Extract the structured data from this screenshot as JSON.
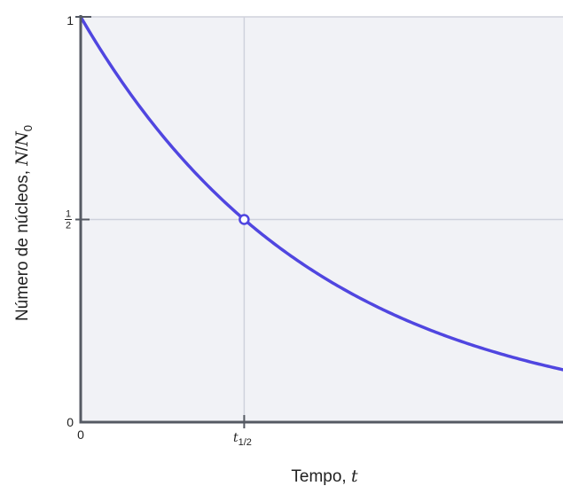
{
  "chart_data": {
    "type": "line",
    "xlabel": {
      "text": "Tempo, ",
      "var": "t"
    },
    "ylabel": {
      "text": "Número de núcleos, ",
      "var": "N",
      "sep": "/",
      "var2": "N",
      "sub": "0"
    },
    "x_ticks": [
      {
        "value": 0,
        "label": "0"
      },
      {
        "value": 1,
        "label": "t",
        "sub": "1/2"
      }
    ],
    "y_ticks": [
      {
        "value": 0,
        "label": "0"
      },
      {
        "value": 0.5,
        "label_num": "1",
        "label_den": "2"
      },
      {
        "value": 1,
        "label": "1"
      }
    ],
    "xlim": [
      0,
      2.95
    ],
    "ylim": [
      0,
      1
    ],
    "series": [
      {
        "formula": "N/N0 = 2^(-t/t_half)",
        "color": "#5046e0"
      }
    ],
    "highlight_point": {
      "x": 1,
      "y": 0.5
    },
    "grid": true,
    "colors": {
      "plot_bg": "#f1f2f6",
      "grid": "#cfd2dc",
      "axis": "#555a63",
      "curve": "#5046e0"
    }
  }
}
